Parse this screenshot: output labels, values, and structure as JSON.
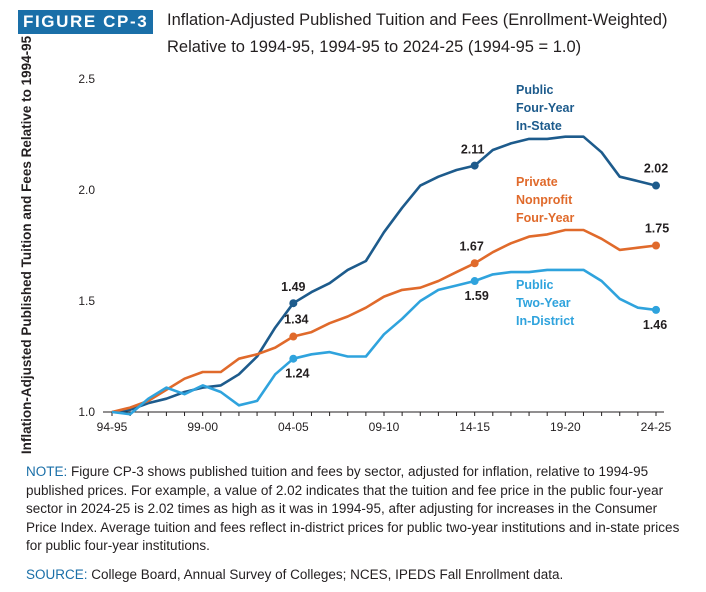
{
  "figure": {
    "badge": "FIGURE CP-3",
    "title_line1": "Inflation-Adjusted Published Tuition and Fees (Enrollment-Weighted)",
    "title_line2": "Relative to 1994-95, 1994-95 to 2024-25 (1994-95 = 1.0)"
  },
  "chart_data": {
    "type": "line",
    "ylabel": "Inflation-Adjusted Published Tuition and Fees Relative to 1994-95",
    "ylim": [
      1.0,
      2.5
    ],
    "yticks": [
      "1.0",
      "1.5",
      "2.0",
      "2.5"
    ],
    "x": [
      "94-95",
      "95-96",
      "96-97",
      "97-98",
      "98-99",
      "99-00",
      "00-01",
      "01-02",
      "02-03",
      "03-04",
      "04-05",
      "05-06",
      "06-07",
      "07-08",
      "08-09",
      "09-10",
      "10-11",
      "11-12",
      "12-13",
      "13-14",
      "14-15",
      "15-16",
      "16-17",
      "17-18",
      "18-19",
      "19-20",
      "20-21",
      "21-22",
      "22-23",
      "23-24",
      "24-25"
    ],
    "xticks": [
      "94-95",
      "99-00",
      "04-05",
      "09-10",
      "14-15",
      "19-20",
      "24-25"
    ],
    "grid": false,
    "series": [
      {
        "name": "Public Four-Year In-State",
        "label_lines": [
          "Public",
          "Four-Year",
          "In-State"
        ],
        "color": "#1d5b8c",
        "values": [
          1.0,
          1.01,
          1.04,
          1.06,
          1.09,
          1.11,
          1.12,
          1.17,
          1.25,
          1.38,
          1.49,
          1.54,
          1.58,
          1.64,
          1.68,
          1.81,
          1.92,
          2.02,
          2.06,
          2.09,
          2.11,
          2.18,
          2.21,
          2.23,
          2.23,
          2.24,
          2.24,
          2.17,
          2.06,
          2.04,
          2.02
        ],
        "points": [
          {
            "index": 10,
            "label": "1.49"
          },
          {
            "index": 20,
            "label": "2.11"
          },
          {
            "index": 30,
            "label": "2.02"
          }
        ]
      },
      {
        "name": "Private Nonprofit Four-Year",
        "label_lines": [
          "Private",
          "Nonprofit",
          "Four-Year"
        ],
        "color": "#e06a2b",
        "values": [
          1.0,
          1.02,
          1.05,
          1.1,
          1.15,
          1.18,
          1.18,
          1.24,
          1.26,
          1.29,
          1.34,
          1.36,
          1.4,
          1.43,
          1.47,
          1.52,
          1.55,
          1.56,
          1.59,
          1.63,
          1.67,
          1.72,
          1.76,
          1.79,
          1.8,
          1.82,
          1.82,
          1.78,
          1.73,
          1.74,
          1.75
        ],
        "points": [
          {
            "index": 10,
            "label": "1.34"
          },
          {
            "index": 20,
            "label": "1.67"
          },
          {
            "index": 30,
            "label": "1.75"
          }
        ]
      },
      {
        "name": "Public Two-Year In-District",
        "label_lines": [
          "Public",
          "Two-Year",
          "In-District"
        ],
        "color": "#2fa3dd",
        "values": [
          1.0,
          0.99,
          1.06,
          1.11,
          1.08,
          1.12,
          1.09,
          1.03,
          1.05,
          1.17,
          1.24,
          1.26,
          1.27,
          1.25,
          1.25,
          1.35,
          1.42,
          1.5,
          1.55,
          1.57,
          1.59,
          1.62,
          1.63,
          1.63,
          1.64,
          1.64,
          1.64,
          1.59,
          1.51,
          1.47,
          1.46
        ],
        "points": [
          {
            "index": 10,
            "label": "1.24"
          },
          {
            "index": 20,
            "label": "1.59"
          },
          {
            "index": 30,
            "label": "1.46"
          }
        ]
      }
    ]
  },
  "note": {
    "label": "NOTE:",
    "text": " Figure CP-3 shows published tuition and fees by sector, adjusted for inflation, relative to 1994-95 published prices. For example, a value of 2.02 indicates that the tuition and fee price in the public four-year sector in 2024-25 is 2.02 times as high as it was in 1994-95, after adjusting for increases in the Consumer Price Index. Average tuition and fees reflect in-district prices for public two-year institutions and in-state prices for public four-year institutions."
  },
  "source": {
    "label": "SOURCE:",
    "text": " College Board, Annual Survey of Colleges; NCES, IPEDS Fall Enrollment data."
  }
}
